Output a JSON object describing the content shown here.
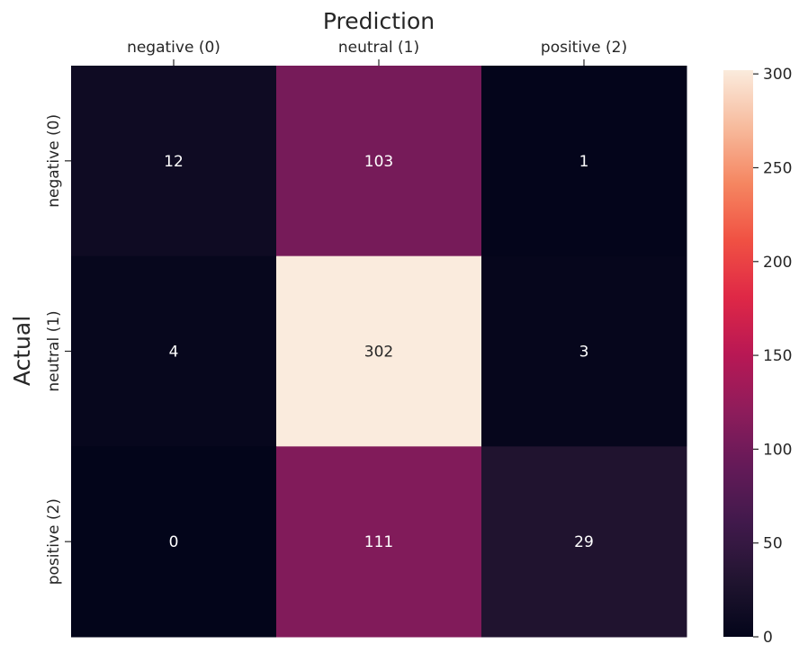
{
  "chart_data": {
    "type": "heatmap",
    "title": "",
    "xlabel": "Prediction",
    "ylabel": "Actual",
    "x_categories": [
      "negative (0)",
      "neutral (1)",
      "positive (2)"
    ],
    "y_categories": [
      "negative (0)",
      "neutral (1)",
      "positive (2)"
    ],
    "values": [
      [
        12,
        103,
        1
      ],
      [
        4,
        302,
        3
      ],
      [
        0,
        111,
        29
      ]
    ],
    "x_axis_position": "top",
    "colormap": "rocket",
    "colorbar": {
      "range": [
        0,
        302
      ],
      "ticks": [
        0,
        50,
        100,
        150,
        200,
        250,
        300
      ]
    },
    "grid": false,
    "legend": "colorbar-right"
  }
}
